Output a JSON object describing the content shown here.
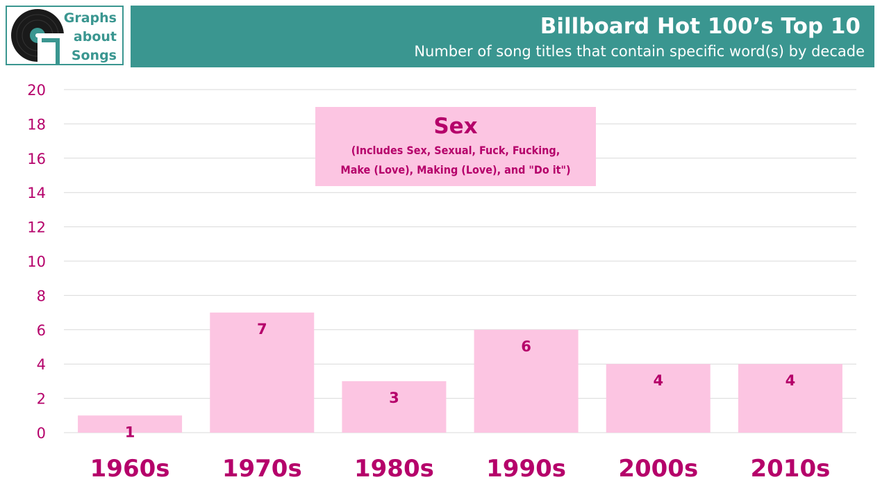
{
  "logo": {
    "lines": [
      "Graphs",
      "about",
      "Songs"
    ]
  },
  "colors": {
    "accent": "#3a9690",
    "bar": "#fcc5e2",
    "text": "#b5006a",
    "grid": "#d9d9d9"
  },
  "chart_data": {
    "type": "bar",
    "title": "Billboard Hot 100’s Top 10",
    "subtitle": "Number of song titles that contain specific word(s) by decade",
    "categories": [
      "1960s",
      "1970s",
      "1980s",
      "1990s",
      "2000s",
      "2010s"
    ],
    "values": [
      1,
      7,
      3,
      6,
      4,
      4
    ],
    "ylim": [
      0,
      20
    ],
    "yticks": [
      0,
      2,
      4,
      6,
      8,
      10,
      12,
      14,
      16,
      18,
      20
    ],
    "grid": true,
    "data_labels": true,
    "annotation": {
      "title": "Sex",
      "lines": [
        "(Includes Sex, Sexual, Fuck, Fucking,",
        "Make (Love), Making (Love), and \"Do it\")"
      ]
    }
  }
}
